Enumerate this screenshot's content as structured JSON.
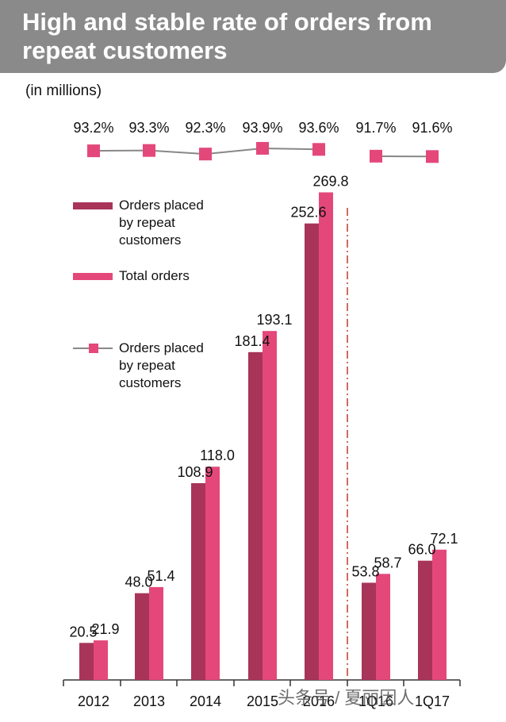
{
  "header": {
    "title": "High and stable rate of orders from\nrepeat customers",
    "units": "(in millions)"
  },
  "legend": [
    {
      "label": "Orders placed\nby repeat\ncustomers",
      "color": "#a8345a",
      "kind": "bar"
    },
    {
      "label": "Total orders",
      "color": "#e4487a",
      "kind": "bar"
    },
    {
      "label": "Orders placed\nby repeat\ncustomers",
      "color": "#e4487a",
      "kind": "line-marker"
    }
  ],
  "watermark": "头条号 / 夏丽因人",
  "colors": {
    "repeat": "#a8345a",
    "total": "#e4487a",
    "line": "#888888",
    "divider": "#c0392b"
  },
  "chart_data": {
    "type": "bar",
    "categories": [
      "2012",
      "2013",
      "2014",
      "2015",
      "2016",
      "1Q16",
      "1Q17"
    ],
    "series": [
      {
        "name": "Orders placed by repeat customers",
        "values": [
          20.5,
          48.0,
          108.9,
          181.4,
          252.6,
          53.8,
          66.0
        ]
      },
      {
        "name": "Total orders",
        "values": [
          21.9,
          51.4,
          118.0,
          193.1,
          269.8,
          58.7,
          72.1
        ]
      }
    ],
    "value_labels": {
      "repeat": [
        "20.5",
        "48.0",
        "108.9",
        "181.4",
        "252.6",
        "53.8",
        "66.0"
      ],
      "total": [
        "21.9",
        "51.4",
        "118.0",
        "193.1",
        "269.8",
        "58.7",
        "72.1"
      ]
    },
    "rate_series": {
      "name": "Orders placed by repeat customers",
      "values": [
        93.2,
        93.3,
        92.3,
        93.9,
        93.6,
        91.7,
        91.6
      ],
      "labels": [
        "93.2%",
        "93.3%",
        "92.3%",
        "93.9%",
        "93.6%",
        "91.7%",
        "91.6%"
      ],
      "segments": [
        [
          0,
          4
        ],
        [
          5,
          6
        ]
      ]
    },
    "ylim": [
      0,
      270
    ],
    "grid": false,
    "legend_placement": "top-left",
    "divider_after_index": 4
  }
}
